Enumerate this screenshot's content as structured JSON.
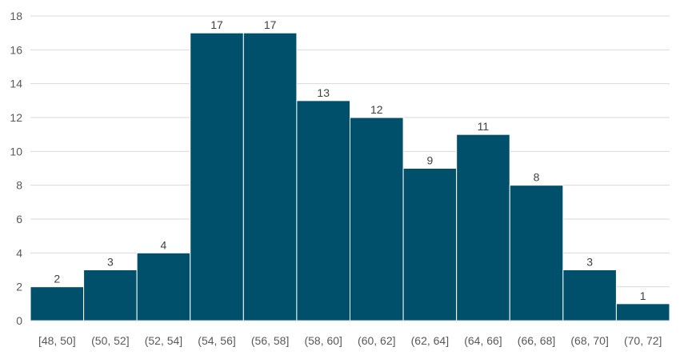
{
  "chart_data": {
    "type": "bar",
    "categories": [
      "[48, 50]",
      "(50, 52]",
      "(52, 54]",
      "(54, 56]",
      "(56, 58]",
      "(58, 60]",
      "(60, 62]",
      "(62, 64]",
      "(64, 66]",
      "(66, 68]",
      "(68, 70]",
      "(70, 72]"
    ],
    "values": [
      2,
      3,
      4,
      17,
      17,
      13,
      12,
      9,
      11,
      8,
      3,
      1
    ],
    "title": "",
    "xlabel": "",
    "ylabel": "",
    "ylim": [
      0,
      18
    ],
    "yticks": [
      0,
      2,
      4,
      6,
      8,
      10,
      12,
      14,
      16,
      18
    ],
    "grid": true,
    "bar_color": "#00506b",
    "data_labels": true
  }
}
